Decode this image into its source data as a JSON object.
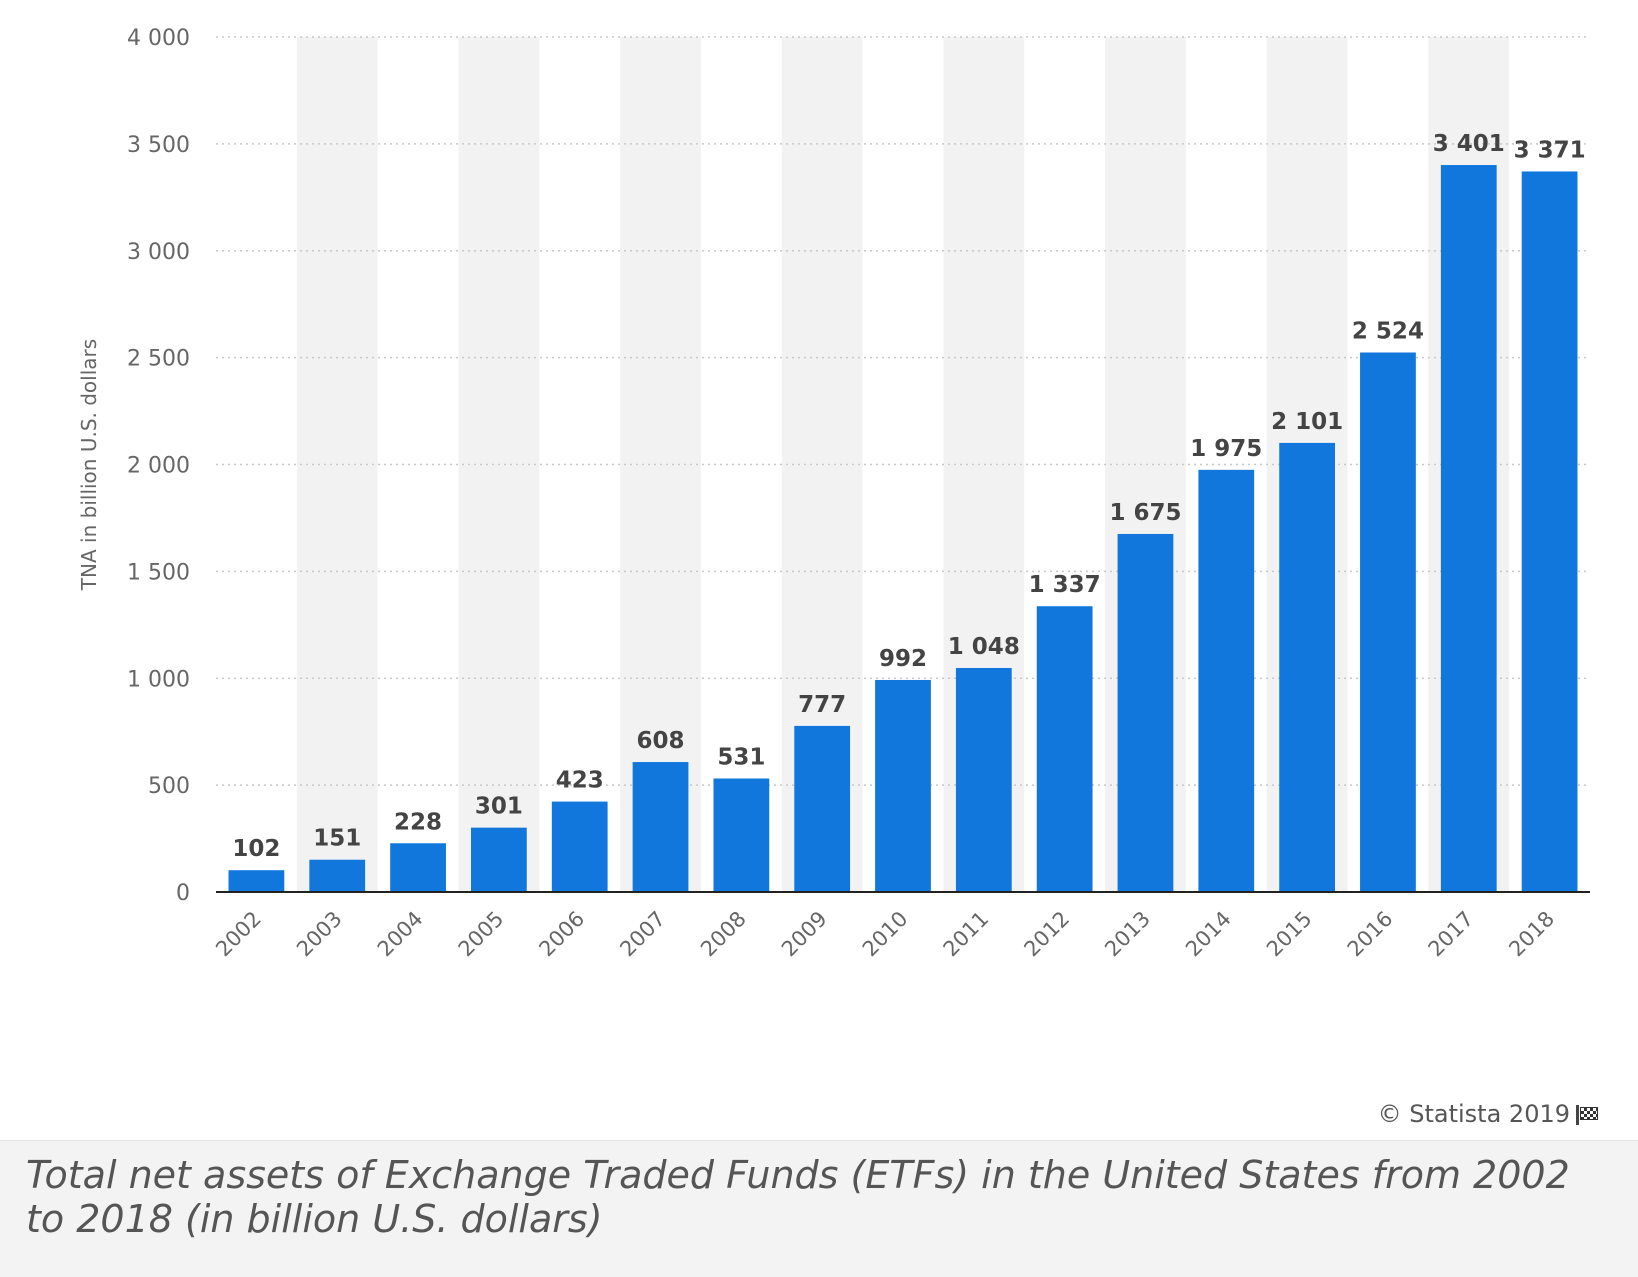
{
  "chart_data": {
    "type": "bar",
    "categories": [
      "2002",
      "2003",
      "2004",
      "2005",
      "2006",
      "2007",
      "2008",
      "2009",
      "2010",
      "2011",
      "2012",
      "2013",
      "2014",
      "2015",
      "2016",
      "2017",
      "2018"
    ],
    "values": [
      102,
      151,
      228,
      301,
      423,
      608,
      531,
      777,
      992,
      1048,
      1337,
      1675,
      1975,
      2101,
      2524,
      3401,
      3371
    ],
    "value_labels": [
      "102",
      "151",
      "228",
      "301",
      "423",
      "608",
      "531",
      "777",
      "992",
      "1 048",
      "1 337",
      "1 675",
      "1 975",
      "2 101",
      "2 524",
      "3 401",
      "3 371"
    ],
    "ylabel": "TNA in billion U.S. dollars",
    "ylim": [
      0,
      4000
    ],
    "yticks": [
      0,
      500,
      1000,
      1500,
      2000,
      2500,
      3000,
      3500,
      4000
    ],
    "ytick_labels": [
      "0",
      "500",
      "1 000",
      "1 500",
      "2 000",
      "2 500",
      "3 000",
      "3 500",
      "4 000"
    ],
    "grid": true,
    "bar_color": "#1177dd",
    "alt_band_color": "#f2f2f2"
  },
  "source": "© Statista 2019",
  "caption": "Total net assets of Exchange Traded Funds (ETFs) in the United States from 2002 to 2018 (in billion U.S. dollars)"
}
